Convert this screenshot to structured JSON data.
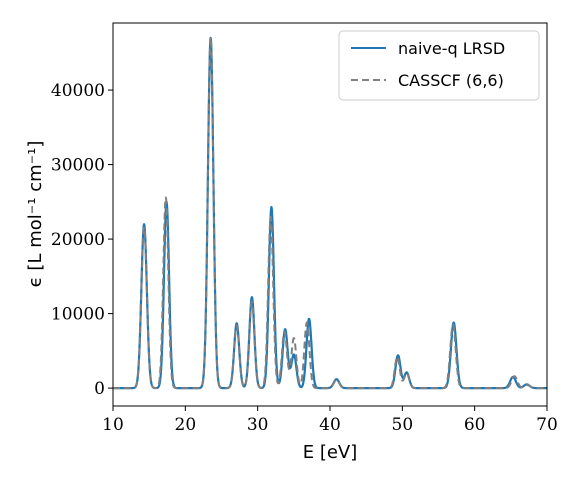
{
  "chart_data": {
    "type": "line",
    "xlabel": "E [eV]",
    "ylabel": "ϵ [L mol⁻¹ cm⁻¹]",
    "xlim": [
      10,
      70
    ],
    "ylim": [
      -2400,
      49000
    ],
    "xticks": [
      10,
      20,
      30,
      40,
      50,
      60,
      70
    ],
    "yticks": [
      0,
      10000,
      20000,
      30000,
      40000
    ],
    "grid": false,
    "legend_position": "top-right",
    "series": [
      {
        "name": "naive-q LRSD",
        "color": "#1f77b4",
        "style": "solid",
        "peaks": [
          {
            "center": 14.3,
            "height": 22000,
            "width": 0.38
          },
          {
            "center": 17.4,
            "height": 25000,
            "width": 0.35
          },
          {
            "center": 23.5,
            "height": 47000,
            "width": 0.38
          },
          {
            "center": 27.1,
            "height": 8700,
            "width": 0.35
          },
          {
            "center": 29.2,
            "height": 12200,
            "width": 0.35
          },
          {
            "center": 31.9,
            "height": 24300,
            "width": 0.35
          },
          {
            "center": 33.8,
            "height": 7900,
            "width": 0.35
          },
          {
            "center": 35.0,
            "height": 4500,
            "width": 0.35
          },
          {
            "center": 37.1,
            "height": 9300,
            "width": 0.35
          },
          {
            "center": 40.9,
            "height": 1200,
            "width": 0.38
          },
          {
            "center": 49.4,
            "height": 4400,
            "width": 0.35
          },
          {
            "center": 50.6,
            "height": 2100,
            "width": 0.35
          },
          {
            "center": 57.1,
            "height": 8800,
            "width": 0.38
          },
          {
            "center": 65.3,
            "height": 1500,
            "width": 0.4
          },
          {
            "center": 67.2,
            "height": 500,
            "width": 0.4
          }
        ]
      },
      {
        "name": "CASSCF (6,6)",
        "color": "#808080",
        "style": "dashed",
        "peaks": [
          {
            "center": 14.3,
            "height": 21600,
            "width": 0.38
          },
          {
            "center": 17.3,
            "height": 25600,
            "width": 0.35
          },
          {
            "center": 23.5,
            "height": 47100,
            "width": 0.38
          },
          {
            "center": 27.1,
            "height": 8400,
            "width": 0.35
          },
          {
            "center": 29.2,
            "height": 11600,
            "width": 0.35
          },
          {
            "center": 31.8,
            "height": 23000,
            "width": 0.35
          },
          {
            "center": 33.7,
            "height": 7600,
            "width": 0.35
          },
          {
            "center": 35.0,
            "height": 6700,
            "width": 0.35
          },
          {
            "center": 36.8,
            "height": 8800,
            "width": 0.35
          },
          {
            "center": 40.9,
            "height": 1100,
            "width": 0.38
          },
          {
            "center": 49.3,
            "height": 4200,
            "width": 0.35
          },
          {
            "center": 50.6,
            "height": 2000,
            "width": 0.35
          },
          {
            "center": 57.0,
            "height": 8500,
            "width": 0.38
          },
          {
            "center": 65.5,
            "height": 1600,
            "width": 0.4
          },
          {
            "center": 67.3,
            "height": 400,
            "width": 0.4
          }
        ]
      }
    ]
  }
}
